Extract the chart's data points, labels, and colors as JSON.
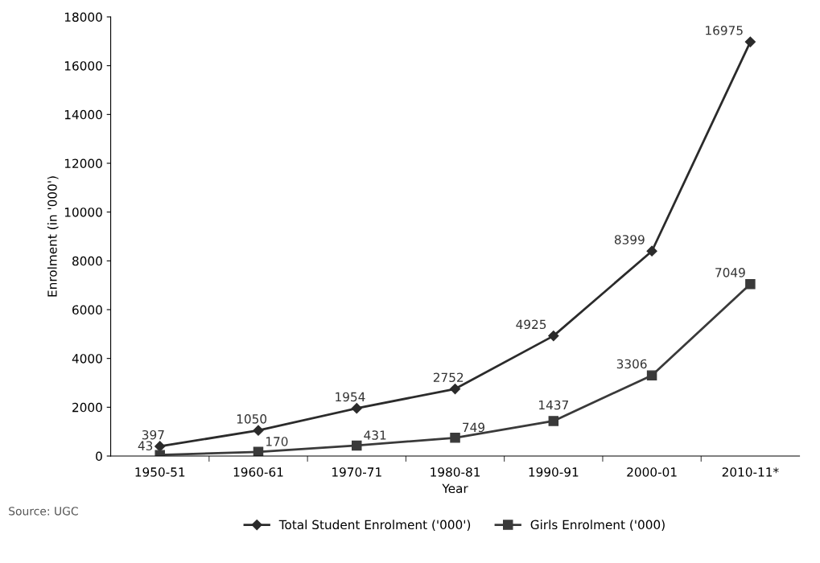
{
  "chart_data": {
    "type": "line",
    "xlabel": "Year",
    "ylabel": "Enrolment (in '000')",
    "categories": [
      "1950-51",
      "1960-61",
      "1970-71",
      "1980-81",
      "1990-91",
      "2000-01",
      "2010-11*"
    ],
    "series": [
      {
        "name": "Total Student Enrolment ('000')",
        "color": "#2b2b2b",
        "marker": "diamond",
        "values": [
          397,
          1050,
          1954,
          2752,
          4925,
          8399,
          16975
        ]
      },
      {
        "name": "Girls Enrolment ('000)",
        "color": "#3a3a3a",
        "marker": "square",
        "values": [
          43,
          170,
          431,
          749,
          1437,
          3306,
          7049
        ]
      }
    ],
    "ylim": [
      0,
      18000
    ],
    "yticks": [
      0,
      2000,
      4000,
      6000,
      8000,
      10000,
      12000,
      14000,
      16000,
      18000
    ],
    "grid": false,
    "legend": "bottom",
    "data_labels": true,
    "line_style": "solid",
    "annotations": [
      "Source: UGC"
    ]
  }
}
